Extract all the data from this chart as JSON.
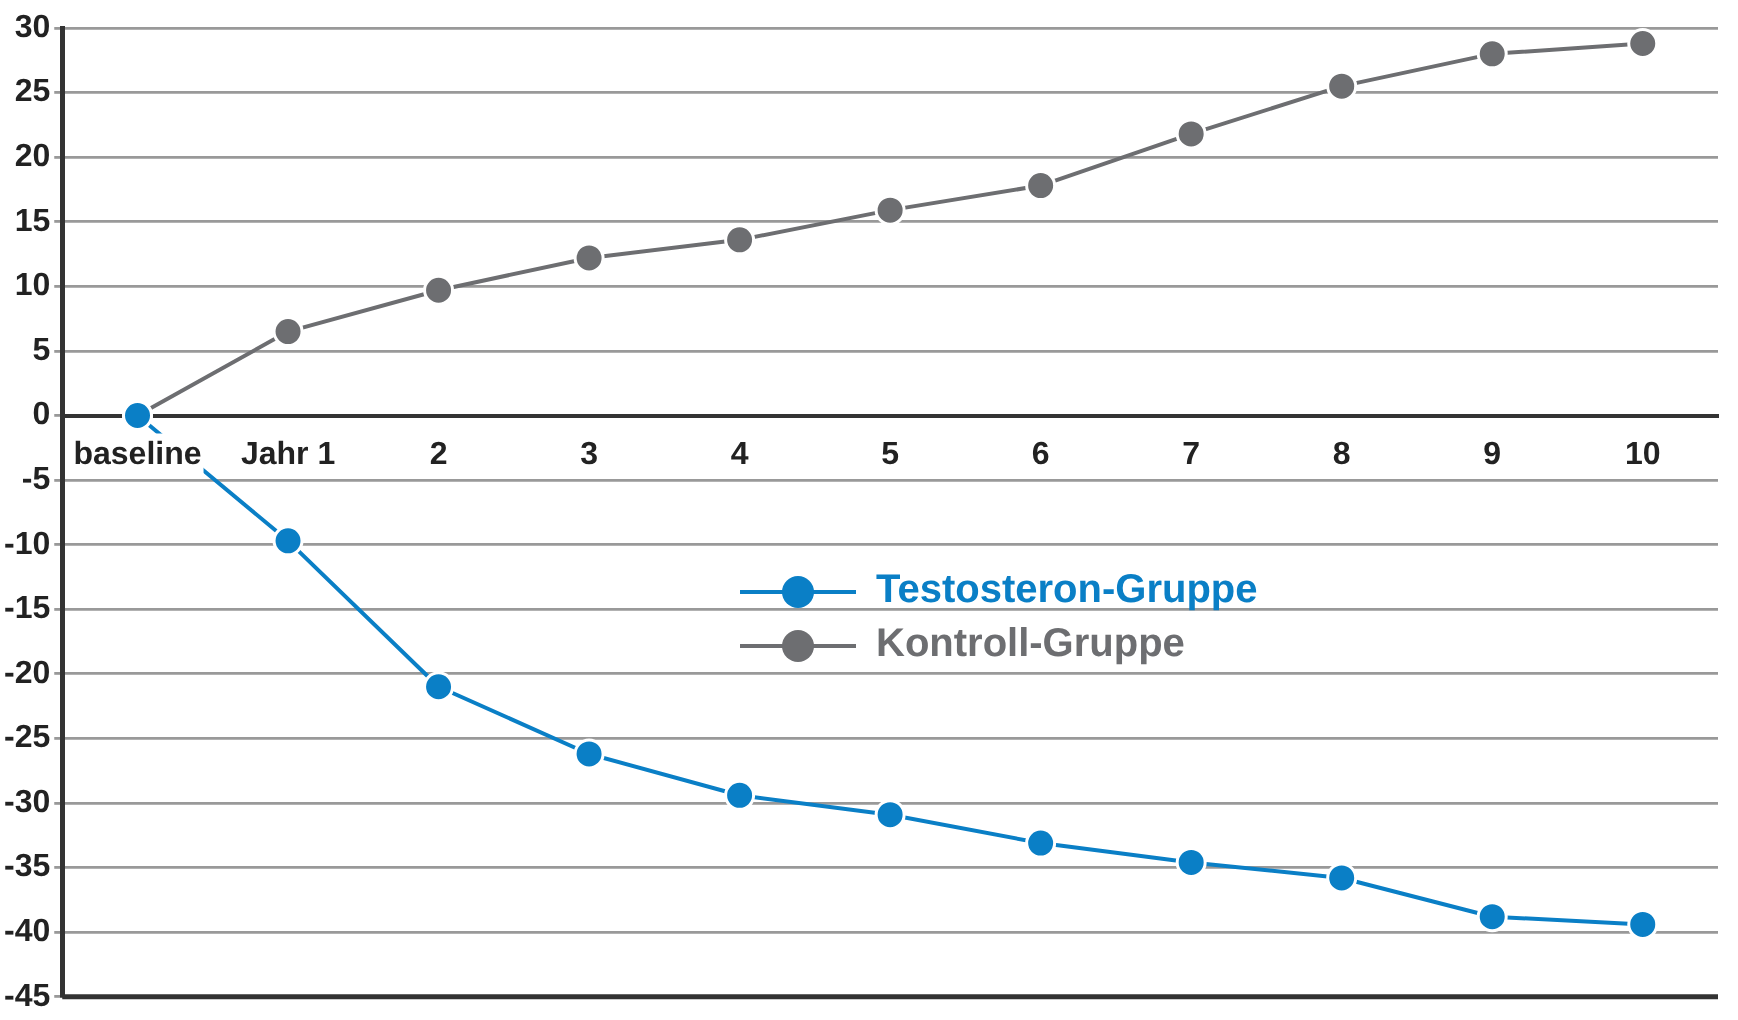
{
  "chart_data": {
    "type": "line",
    "categories": [
      "baseline",
      "Jahr 1",
      "2",
      "3",
      "4",
      "5",
      "6",
      "7",
      "8",
      "9",
      "10"
    ],
    "series": [
      {
        "name": "Testosteron-Gruppe",
        "color": "#0a7fc6",
        "values": [
          0,
          -9.7,
          -21.0,
          -26.2,
          -29.4,
          -30.9,
          -33.1,
          -34.6,
          -35.8,
          -38.8,
          -39.4
        ]
      },
      {
        "name": "Kontroll-Gruppe",
        "color": "#6d6e71",
        "values": [
          0,
          6.5,
          9.7,
          12.2,
          13.6,
          15.9,
          17.8,
          21.8,
          25.5,
          28.0,
          28.8
        ]
      }
    ],
    "ylim": [
      -45,
      30
    ],
    "yticks": [
      -45,
      -40,
      -35,
      -30,
      -25,
      -20,
      -15,
      -10,
      -5,
      0,
      5,
      10,
      15,
      20,
      25,
      30
    ],
    "grid": "y",
    "legend": "center",
    "marker": "circle",
    "line_style": "solid"
  }
}
